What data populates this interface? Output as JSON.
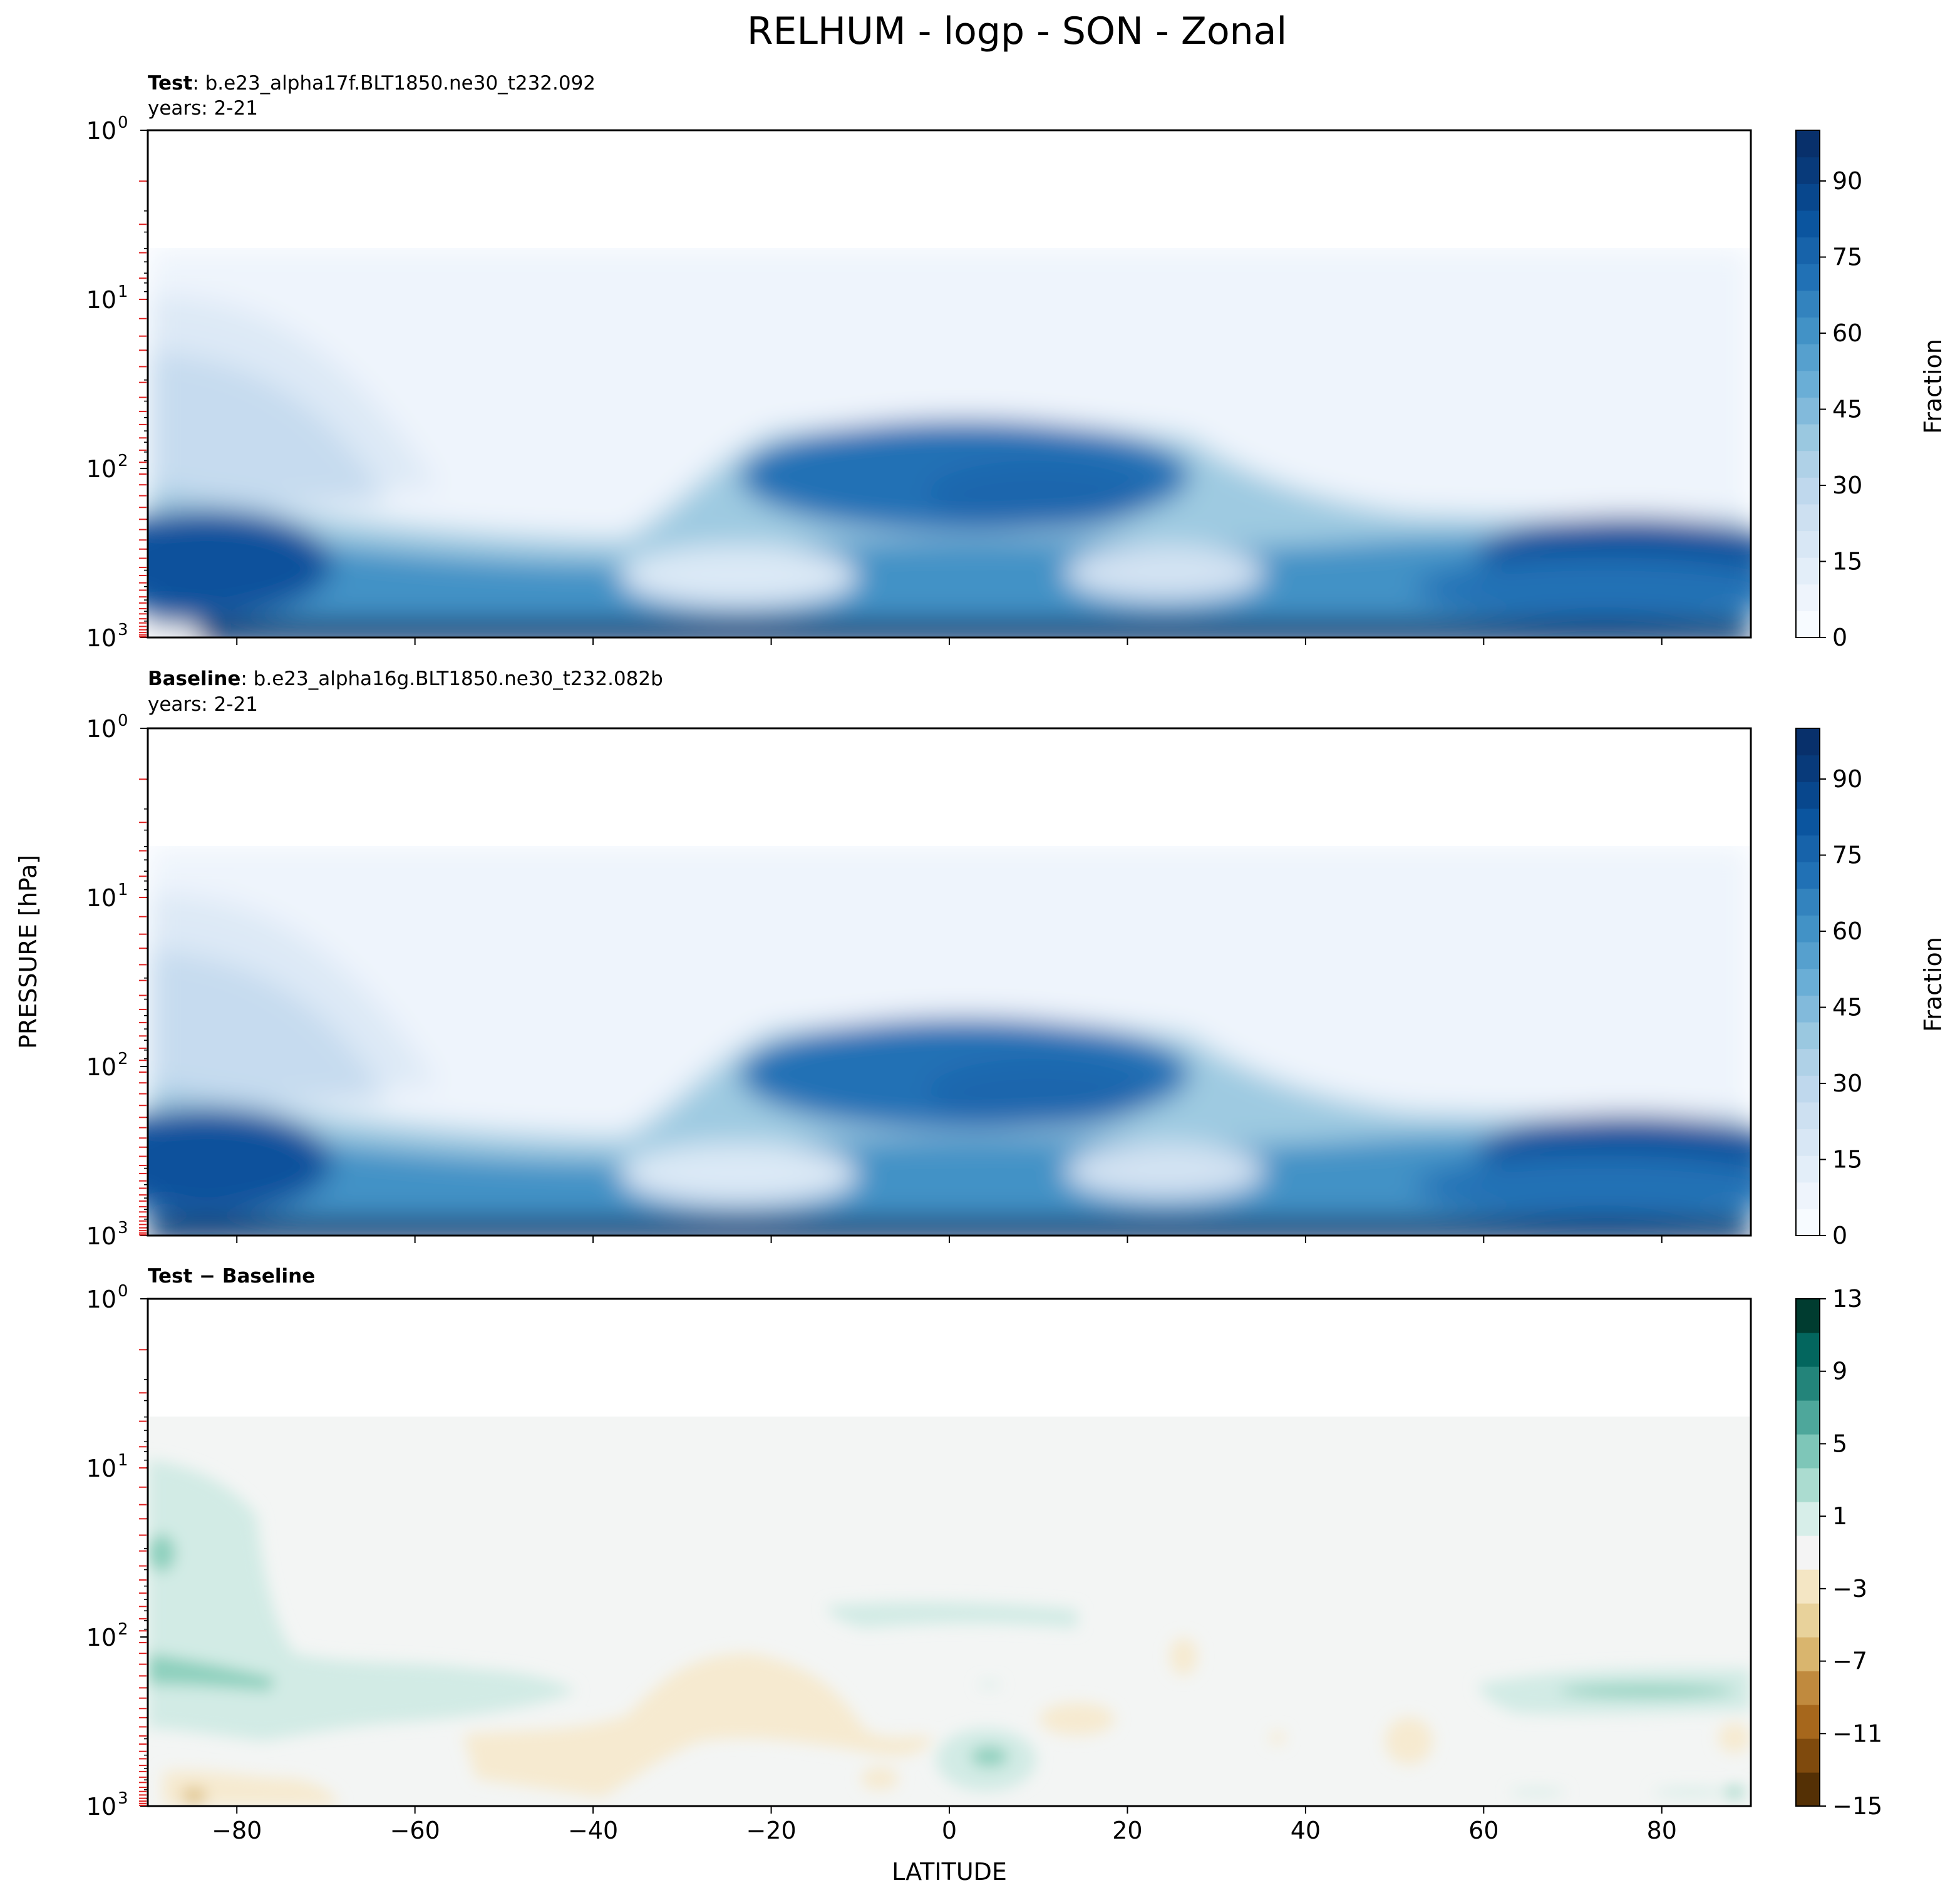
{
  "figure": {
    "title": "RELHUM - logp - SON - Zonal",
    "shared_ylabel": "PRESSURE [hPa]",
    "shared_xlabel": "LATITUDE"
  },
  "chart_data": [
    {
      "type": "contour",
      "panel": "test",
      "subtitle_bold": "Test",
      "subtitle_rest": ": b.e23_alpha17f.BLT1850.ne30_t232.092",
      "subtitle_line2": "years: 2-21",
      "xlim": [
        -90,
        90
      ],
      "x_ticks": [
        -80,
        -60,
        -40,
        -20,
        0,
        20,
        40,
        60,
        80
      ],
      "y_scale": "log",
      "y_inverted": true,
      "ylim": [
        1000,
        1
      ],
      "y_tick_labels": [
        {
          "value": 1,
          "label": "10^0"
        },
        {
          "value": 10,
          "label": "10^1"
        },
        {
          "value": 100,
          "label": "10^2"
        },
        {
          "value": 1000,
          "label": "10^3"
        }
      ],
      "model_levels_marked_red": true,
      "colormap": "Blues",
      "colorbar_label": "Fraction",
      "colorbar_ticks": [
        0,
        15,
        30,
        45,
        60,
        75,
        90
      ],
      "colorbar_range": [
        0,
        100
      ],
      "features": [
        {
          "name": "Southern polar lower troposphere",
          "lat": [
            -90,
            -70
          ],
          "plev": [
            1000,
            400
          ],
          "value": 85
        },
        {
          "name": "Southern polar upper troposphere / lower stratosphere",
          "lat": [
            -90,
            -70
          ],
          "plev": [
            400,
            10
          ],
          "value": 20
        },
        {
          "name": "Tropical upper troposphere maximum",
          "lat": [
            -20,
            25
          ],
          "plev": [
            300,
            100
          ],
          "value": 80
        },
        {
          "name": "Subtropical dry zone (SH)",
          "lat": [
            -30,
            -5
          ],
          "plev": [
            600,
            300
          ],
          "value": 15
        },
        {
          "name": "Subtropical dry zone (NH)",
          "lat": [
            15,
            35
          ],
          "plev": [
            600,
            300
          ],
          "value": 20
        },
        {
          "name": "Northern polar lower troposphere",
          "lat": [
            70,
            90
          ],
          "plev": [
            1000,
            250
          ],
          "value": 85
        },
        {
          "name": "Stratosphere (above ~100 hPa outside tropics)",
          "lat": [
            -90,
            90
          ],
          "plev": [
            100,
            5
          ],
          "value": 2
        }
      ]
    },
    {
      "type": "contour",
      "panel": "baseline",
      "subtitle_bold": "Baseline",
      "subtitle_rest": ": b.e23_alpha16g.BLT1850.ne30_t232.082b",
      "subtitle_line2": "years: 2-21",
      "xlim": [
        -90,
        90
      ],
      "x_ticks": [
        -80,
        -60,
        -40,
        -20,
        0,
        20,
        40,
        60,
        80
      ],
      "y_scale": "log",
      "y_inverted": true,
      "ylim": [
        1000,
        1
      ],
      "y_tick_labels": [
        {
          "value": 1,
          "label": "10^0"
        },
        {
          "value": 10,
          "label": "10^1"
        },
        {
          "value": 100,
          "label": "10^2"
        },
        {
          "value": 1000,
          "label": "10^3"
        }
      ],
      "model_levels_marked_red": true,
      "colormap": "Blues",
      "colorbar_label": "Fraction",
      "colorbar_ticks": [
        0,
        15,
        30,
        45,
        60,
        75,
        90
      ],
      "colorbar_range": [
        0,
        100
      ],
      "features": [
        {
          "name": "Southern polar lower troposphere",
          "lat": [
            -90,
            -70
          ],
          "plev": [
            1000,
            400
          ],
          "value": 85
        },
        {
          "name": "Southern polar upper troposphere / lower stratosphere",
          "lat": [
            -90,
            -70
          ],
          "plev": [
            400,
            10
          ],
          "value": 20
        },
        {
          "name": "Tropical upper troposphere maximum",
          "lat": [
            -20,
            25
          ],
          "plev": [
            300,
            100
          ],
          "value": 80
        },
        {
          "name": "Subtropical dry zone (SH)",
          "lat": [
            -30,
            -5
          ],
          "plev": [
            600,
            300
          ],
          "value": 15
        },
        {
          "name": "Subtropical dry zone (NH)",
          "lat": [
            15,
            35
          ],
          "plev": [
            600,
            300
          ],
          "value": 20
        },
        {
          "name": "Northern polar lower troposphere",
          "lat": [
            70,
            90
          ],
          "plev": [
            1000,
            250
          ],
          "value": 85
        },
        {
          "name": "Stratosphere (above ~100 hPa outside tropics)",
          "lat": [
            -90,
            90
          ],
          "plev": [
            100,
            5
          ],
          "value": 2
        }
      ]
    },
    {
      "type": "contour",
      "panel": "difference",
      "subtitle_bold": "Test − Baseline",
      "xlim": [
        -90,
        90
      ],
      "x_ticks": [
        -80,
        -60,
        -40,
        -20,
        0,
        20,
        40,
        60,
        80
      ],
      "y_scale": "log",
      "y_inverted": true,
      "ylim": [
        1000,
        1
      ],
      "y_tick_labels": [
        {
          "value": 1,
          "label": "10^0"
        },
        {
          "value": 10,
          "label": "10^1"
        },
        {
          "value": 100,
          "label": "10^2"
        },
        {
          "value": 1000,
          "label": "10^3"
        }
      ],
      "model_levels_marked_red": true,
      "colormap": "BrBG",
      "colorbar_ticks": [
        -15,
        -11,
        -7,
        -3,
        1,
        5,
        9,
        13
      ],
      "colorbar_range": [
        -15,
        13
      ],
      "features": [
        {
          "name": "SH high-latitude moistening",
          "lat": [
            -90,
            -40
          ],
          "plev": [
            250,
            10
          ],
          "value": 2
        },
        {
          "name": "SH high-latitude moistening max",
          "lat": [
            -90,
            -75
          ],
          "plev": [
            200,
            150
          ],
          "value": 5
        },
        {
          "name": "Subtropical drying",
          "lat": [
            -55,
            -5
          ],
          "plev": [
            650,
            150
          ],
          "value": -2
        },
        {
          "name": "Tropical upper-troposphere moistening",
          "lat": [
            -15,
            15
          ],
          "plev": [
            70,
            50
          ],
          "value": 2
        },
        {
          "name": "Equatorial lower-troposphere moistening",
          "lat": [
            -2,
            10
          ],
          "plev": [
            700,
            500
          ],
          "value": 3
        },
        {
          "name": "NH polar moistening",
          "lat": [
            60,
            90
          ],
          "plev": [
            250,
            150
          ],
          "value": 3
        }
      ]
    }
  ]
}
